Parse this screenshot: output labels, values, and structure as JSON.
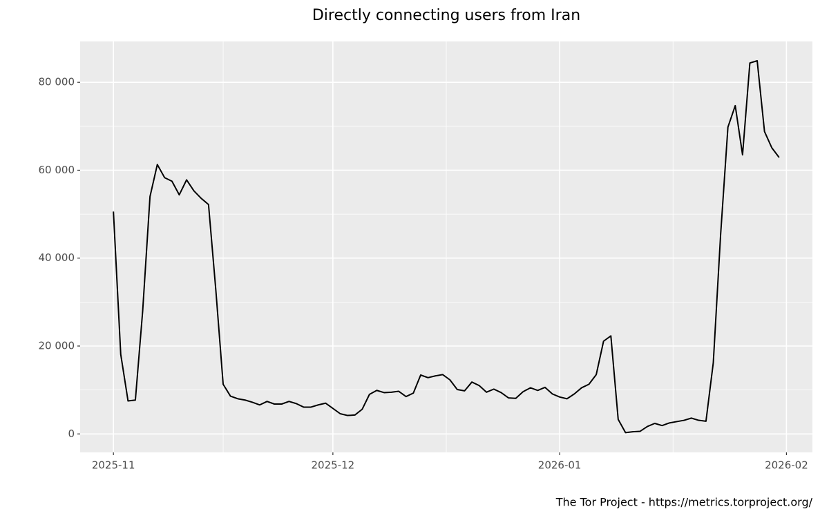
{
  "chart_data": {
    "type": "line",
    "title": "Directly connecting users from Iran",
    "caption": "The Tor Project - https://metrics.torproject.org/",
    "xticks": [
      "2025-11",
      "2025-12",
      "2026-01",
      "2026-02"
    ],
    "ylim": [
      -4200,
      89300
    ],
    "yticks": [
      0,
      {
        "value": 20000,
        "label": "20 000"
      },
      {
        "value": 40000,
        "label": "40 000"
      },
      {
        "value": 60000,
        "label": "60 000"
      },
      {
        "value": 80000,
        "label": "80 000"
      }
    ],
    "grid": true,
    "color": "#000000",
    "values": [
      50600,
      18100,
      7500,
      7700,
      28000,
      54000,
      61300,
      58300,
      57500,
      54400,
      57800,
      55300,
      53600,
      52200,
      32700,
      11300,
      8600,
      8000,
      7700,
      7200,
      6600,
      7400,
      6800,
      6800,
      7400,
      6900,
      6100,
      6100,
      6600,
      7000,
      5800,
      4600,
      4200,
      4300,
      5600,
      9000,
      9900,
      9400,
      9500,
      9700,
      8500,
      9300,
      13400,
      12800,
      13200,
      13500,
      12300,
      10100,
      9800,
      11800,
      11000,
      9500,
      10200,
      9400,
      8200,
      8100,
      9600,
      10500,
      9900,
      10600,
      9100,
      8400,
      8000,
      9100,
      10500,
      11300,
      13500,
      21100,
      22300,
      3300,
      300,
      500,
      600,
      1700,
      2400,
      1900,
      2500,
      2800,
      3100,
      3600,
      3100,
      2900,
      16200,
      45300,
      69800,
      74700,
      63500,
      84400,
      84900,
      68800,
      65100,
      62900
    ]
  }
}
